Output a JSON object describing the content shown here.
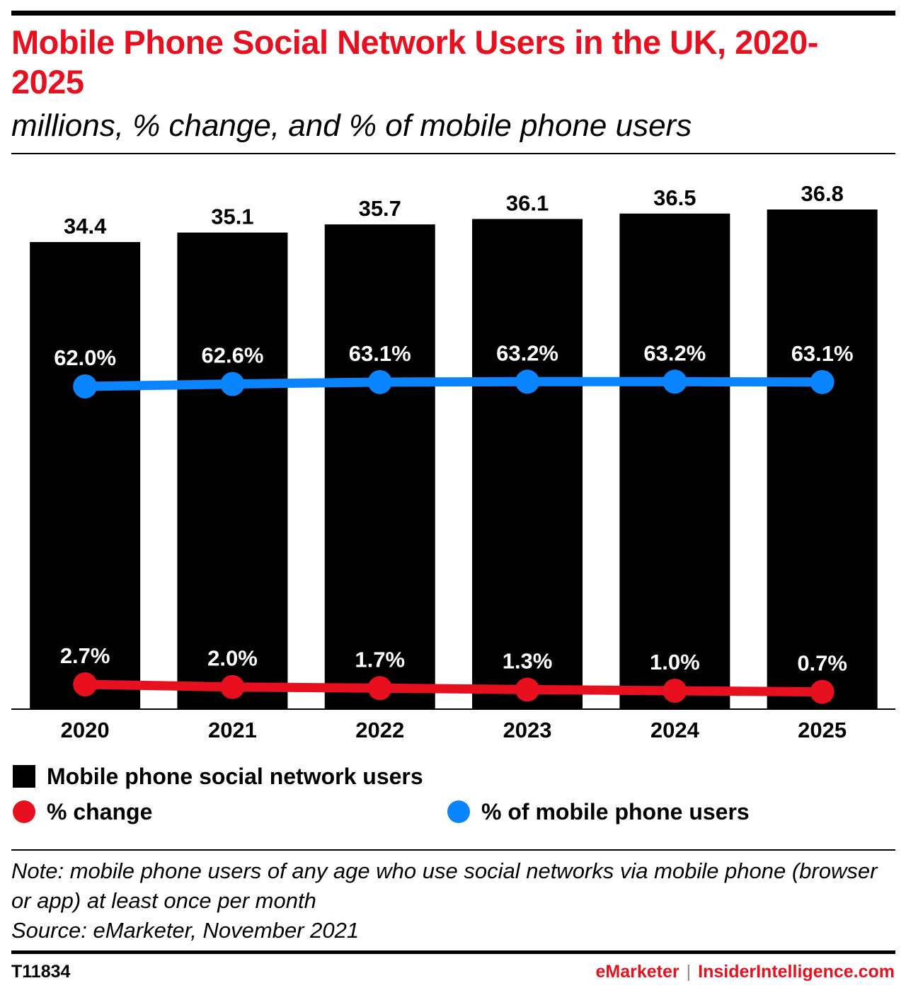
{
  "title": "Mobile Phone Social Network Users in the UK, 2020-2025",
  "subtitle": "millions, % change, and % of mobile phone users",
  "colors": {
    "accent": "#e8101f",
    "bars": "#000000",
    "change_line": "#e8101f",
    "share_line": "#0a84ff"
  },
  "legend": {
    "bars_label": "Mobile phone social network users",
    "change_label": "% change",
    "share_label": "% of mobile phone users"
  },
  "note": "Note: mobile phone users of any age who use social networks via mobile phone (browser or app) at least once per month",
  "source": "Source: eMarketer, November 2021",
  "footer": {
    "chart_id": "T11834",
    "brand_emarketer": "eMarketer",
    "brand_separator": "|",
    "brand_insider": "InsiderIntelligence.com"
  },
  "chart_data": {
    "type": "bar",
    "categories": [
      "2020",
      "2021",
      "2022",
      "2023",
      "2024",
      "2025"
    ],
    "series": [
      {
        "name": "Mobile phone social network users",
        "type": "bar",
        "values": [
          34.4,
          35.1,
          35.7,
          36.1,
          36.5,
          36.8
        ],
        "labels": [
          "34.4",
          "35.1",
          "35.7",
          "36.1",
          "36.5",
          "36.8"
        ]
      },
      {
        "name": "% change",
        "type": "line",
        "values": [
          2.7,
          2.0,
          1.7,
          1.3,
          1.0,
          0.7
        ],
        "labels": [
          "2.7%",
          "2.0%",
          "1.7%",
          "1.3%",
          "1.0%",
          "0.7%"
        ]
      },
      {
        "name": "% of mobile phone users",
        "type": "line",
        "values": [
          62.0,
          62.6,
          63.1,
          63.2,
          63.2,
          63.1
        ],
        "labels": [
          "62.0%",
          "62.6%",
          "63.1%",
          "63.2%",
          "63.2%",
          "63.1%"
        ]
      }
    ],
    "ylim": [
      0,
      40
    ],
    "grid": false,
    "legend_position": "bottom"
  }
}
